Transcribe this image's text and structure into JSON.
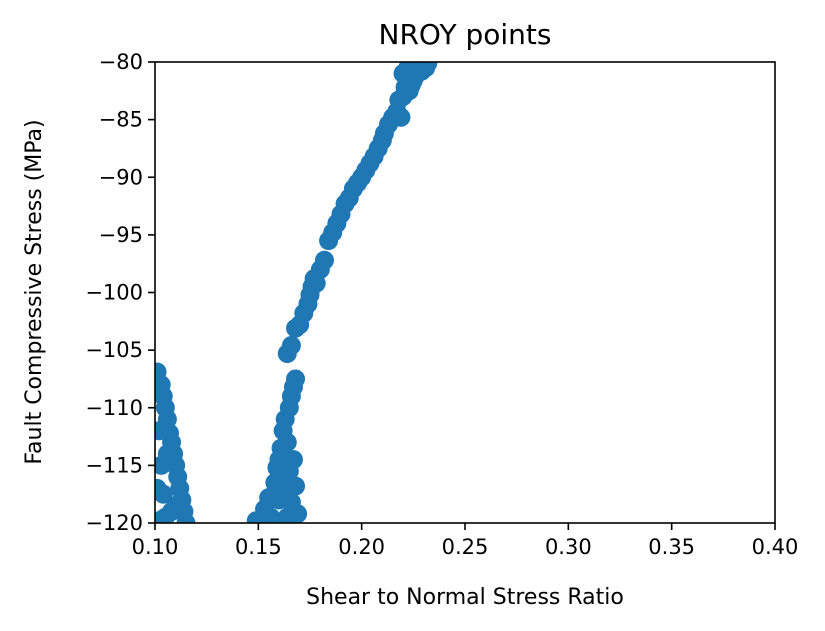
{
  "chart_data": {
    "type": "scatter",
    "title": "NROY points",
    "xlabel": "Shear to Normal Stress Ratio",
    "ylabel": "Fault Compressive Stress (MPa)",
    "xlim": [
      0.1,
      0.4
    ],
    "ylim": [
      -120,
      -80
    ],
    "xticks": [
      "0.10",
      "0.15",
      "0.20",
      "0.25",
      "0.30",
      "0.35",
      "0.40"
    ],
    "yticks": [
      "−80",
      "−85",
      "−90",
      "−95",
      "−100",
      "−105",
      "−110",
      "−115",
      "−120"
    ],
    "grid": false,
    "marker_color": "#1f77b4",
    "series": [
      {
        "points": [
          [
            0.101,
            -106.9
          ],
          [
            0.103,
            -108.0
          ],
          [
            0.104,
            -109.0
          ],
          [
            0.105,
            -110.0
          ],
          [
            0.106,
            -111.0
          ],
          [
            0.107,
            -112.2
          ],
          [
            0.108,
            -113.0
          ],
          [
            0.109,
            -114.0
          ],
          [
            0.11,
            -115.0
          ],
          [
            0.111,
            -116.0
          ],
          [
            0.112,
            -117.0
          ],
          [
            0.113,
            -118.0
          ],
          [
            0.114,
            -119.0
          ],
          [
            0.115,
            -120.0
          ],
          [
            0.102,
            -112.0
          ],
          [
            0.103,
            -115.0
          ],
          [
            0.104,
            -117.5
          ],
          [
            0.105,
            -119.5
          ],
          [
            0.108,
            -119.0
          ],
          [
            0.11,
            -118.5
          ],
          [
            0.106,
            -114.0
          ],
          [
            0.101,
            -117.0
          ],
          [
            0.102,
            -119.8
          ],
          [
            0.149,
            -119.8
          ],
          [
            0.153,
            -118.8
          ],
          [
            0.155,
            -117.8
          ],
          [
            0.156,
            -119.5
          ],
          [
            0.158,
            -116.5
          ],
          [
            0.159,
            -115.2
          ],
          [
            0.16,
            -118.0
          ],
          [
            0.161,
            -113.5
          ],
          [
            0.162,
            -112.0
          ],
          [
            0.163,
            -111.0
          ],
          [
            0.164,
            -119.5
          ],
          [
            0.165,
            -110.0
          ],
          [
            0.166,
            -109.0
          ],
          [
            0.167,
            -108.2
          ],
          [
            0.168,
            -107.5
          ],
          [
            0.167,
            -114.5
          ],
          [
            0.168,
            -116.8
          ],
          [
            0.169,
            -119.2
          ],
          [
            0.162,
            -116.0
          ],
          [
            0.164,
            -113.0
          ],
          [
            0.166,
            -118.2
          ],
          [
            0.16,
            -114.5
          ],
          [
            0.165,
            -115.5
          ],
          [
            0.163,
            -117.2
          ],
          [
            0.164,
            -105.3
          ],
          [
            0.166,
            -104.6
          ],
          [
            0.168,
            -103.1
          ],
          [
            0.17,
            -102.8
          ],
          [
            0.172,
            -101.8
          ],
          [
            0.174,
            -101.0
          ],
          [
            0.175,
            -100.2
          ],
          [
            0.176,
            -99.5
          ],
          [
            0.177,
            -98.8
          ],
          [
            0.178,
            -99.2
          ],
          [
            0.18,
            -98.0
          ],
          [
            0.182,
            -97.2
          ],
          [
            0.184,
            -95.5
          ],
          [
            0.186,
            -94.8
          ],
          [
            0.188,
            -94.0
          ],
          [
            0.19,
            -93.2
          ],
          [
            0.192,
            -92.3
          ],
          [
            0.194,
            -91.8
          ],
          [
            0.196,
            -91.0
          ],
          [
            0.198,
            -90.5
          ],
          [
            0.2,
            -90.0
          ],
          [
            0.202,
            -89.4
          ],
          [
            0.204,
            -88.8
          ],
          [
            0.206,
            -88.2
          ],
          [
            0.208,
            -87.5
          ],
          [
            0.21,
            -86.8
          ],
          [
            0.211,
            -86.2
          ],
          [
            0.213,
            -85.4
          ],
          [
            0.215,
            -84.8
          ],
          [
            0.217,
            -84.3
          ],
          [
            0.219,
            -84.8
          ],
          [
            0.218,
            -83.3
          ],
          [
            0.22,
            -83.0
          ],
          [
            0.221,
            -82.2
          ],
          [
            0.222,
            -81.5
          ],
          [
            0.223,
            -82.5
          ],
          [
            0.224,
            -80.8
          ],
          [
            0.225,
            -81.6
          ],
          [
            0.226,
            -80.5
          ],
          [
            0.227,
            -81.0
          ],
          [
            0.228,
            -80.3
          ],
          [
            0.229,
            -80.8
          ],
          [
            0.23,
            -80.2
          ],
          [
            0.231,
            -80.5
          ],
          [
            0.232,
            -80.1
          ],
          [
            0.222,
            -80.6
          ],
          [
            0.22,
            -81.0
          ],
          [
            0.224,
            -82.0
          ],
          [
            0.226,
            -81.2
          ]
        ]
      }
    ]
  }
}
